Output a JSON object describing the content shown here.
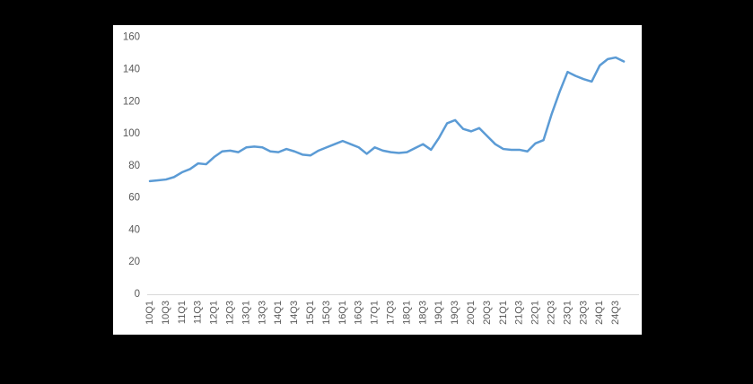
{
  "chart_data": {
    "type": "line",
    "title": "",
    "xlabel": "",
    "ylabel": "",
    "ylim": [
      0,
      160
    ],
    "y_ticks": [
      0,
      20,
      40,
      60,
      80,
      100,
      120,
      140,
      160
    ],
    "grid": false,
    "legend": false,
    "x_tick_labels": [
      "10Q1",
      "10Q3",
      "11Q1",
      "11Q3",
      "12Q1",
      "12Q3",
      "13Q1",
      "13Q3",
      "14Q1",
      "14Q3",
      "15Q1",
      "15Q3",
      "16Q1",
      "16Q3",
      "17Q1",
      "17Q3",
      "18Q1",
      "18Q3",
      "19Q1",
      "19Q3",
      "20Q1",
      "20Q3",
      "21Q1",
      "21Q3",
      "22Q1",
      "22Q3",
      "23Q1",
      "23Q3",
      "24Q1",
      "24Q3"
    ],
    "categories": [
      "10Q1",
      "10Q2",
      "10Q3",
      "10Q4",
      "11Q1",
      "11Q2",
      "11Q3",
      "11Q4",
      "12Q1",
      "12Q2",
      "12Q3",
      "12Q4",
      "13Q1",
      "13Q2",
      "13Q3",
      "13Q4",
      "14Q1",
      "14Q2",
      "14Q3",
      "14Q4",
      "15Q1",
      "15Q2",
      "15Q3",
      "15Q4",
      "16Q1",
      "16Q2",
      "16Q3",
      "16Q4",
      "17Q1",
      "17Q2",
      "17Q3",
      "17Q4",
      "18Q1",
      "18Q2",
      "18Q3",
      "18Q4",
      "19Q1",
      "19Q2",
      "19Q3",
      "19Q4",
      "20Q1",
      "20Q2",
      "20Q3",
      "20Q4",
      "21Q1",
      "21Q2",
      "21Q3",
      "21Q4",
      "22Q1",
      "22Q2",
      "22Q3",
      "22Q4",
      "23Q1",
      "23Q2",
      "23Q3",
      "23Q4",
      "24Q1",
      "24Q2",
      "24Q3",
      "24Q4"
    ],
    "values": [
      70.5,
      71,
      71.5,
      73,
      76,
      78,
      81.5,
      81,
      85.5,
      89,
      89.5,
      88.5,
      91.5,
      92,
      91.5,
      89,
      88.5,
      90.5,
      89,
      87,
      86.5,
      89.5,
      91.5,
      93.5,
      95.5,
      93.5,
      91.5,
      87.5,
      91.5,
      89.5,
      88.5,
      88,
      88.5,
      91,
      93.5,
      90,
      97.5,
      106.5,
      108.5,
      103,
      101.5,
      103.5,
      98.5,
      93.5,
      90.5,
      90,
      90,
      89,
      94,
      96,
      112,
      126,
      138.5,
      136,
      134,
      132.5,
      142.5,
      146.5,
      147.5,
      145
    ],
    "style": {
      "line_color": "#5B9BD5",
      "line_width": 2.5,
      "tick_label_color": "#595959",
      "axis_line_color": "#D9D9D9",
      "panel_background": "#FFFFFF",
      "page_background": "#000000",
      "y_tick_font_size": 11.5,
      "x_tick_font_size": 11
    }
  }
}
